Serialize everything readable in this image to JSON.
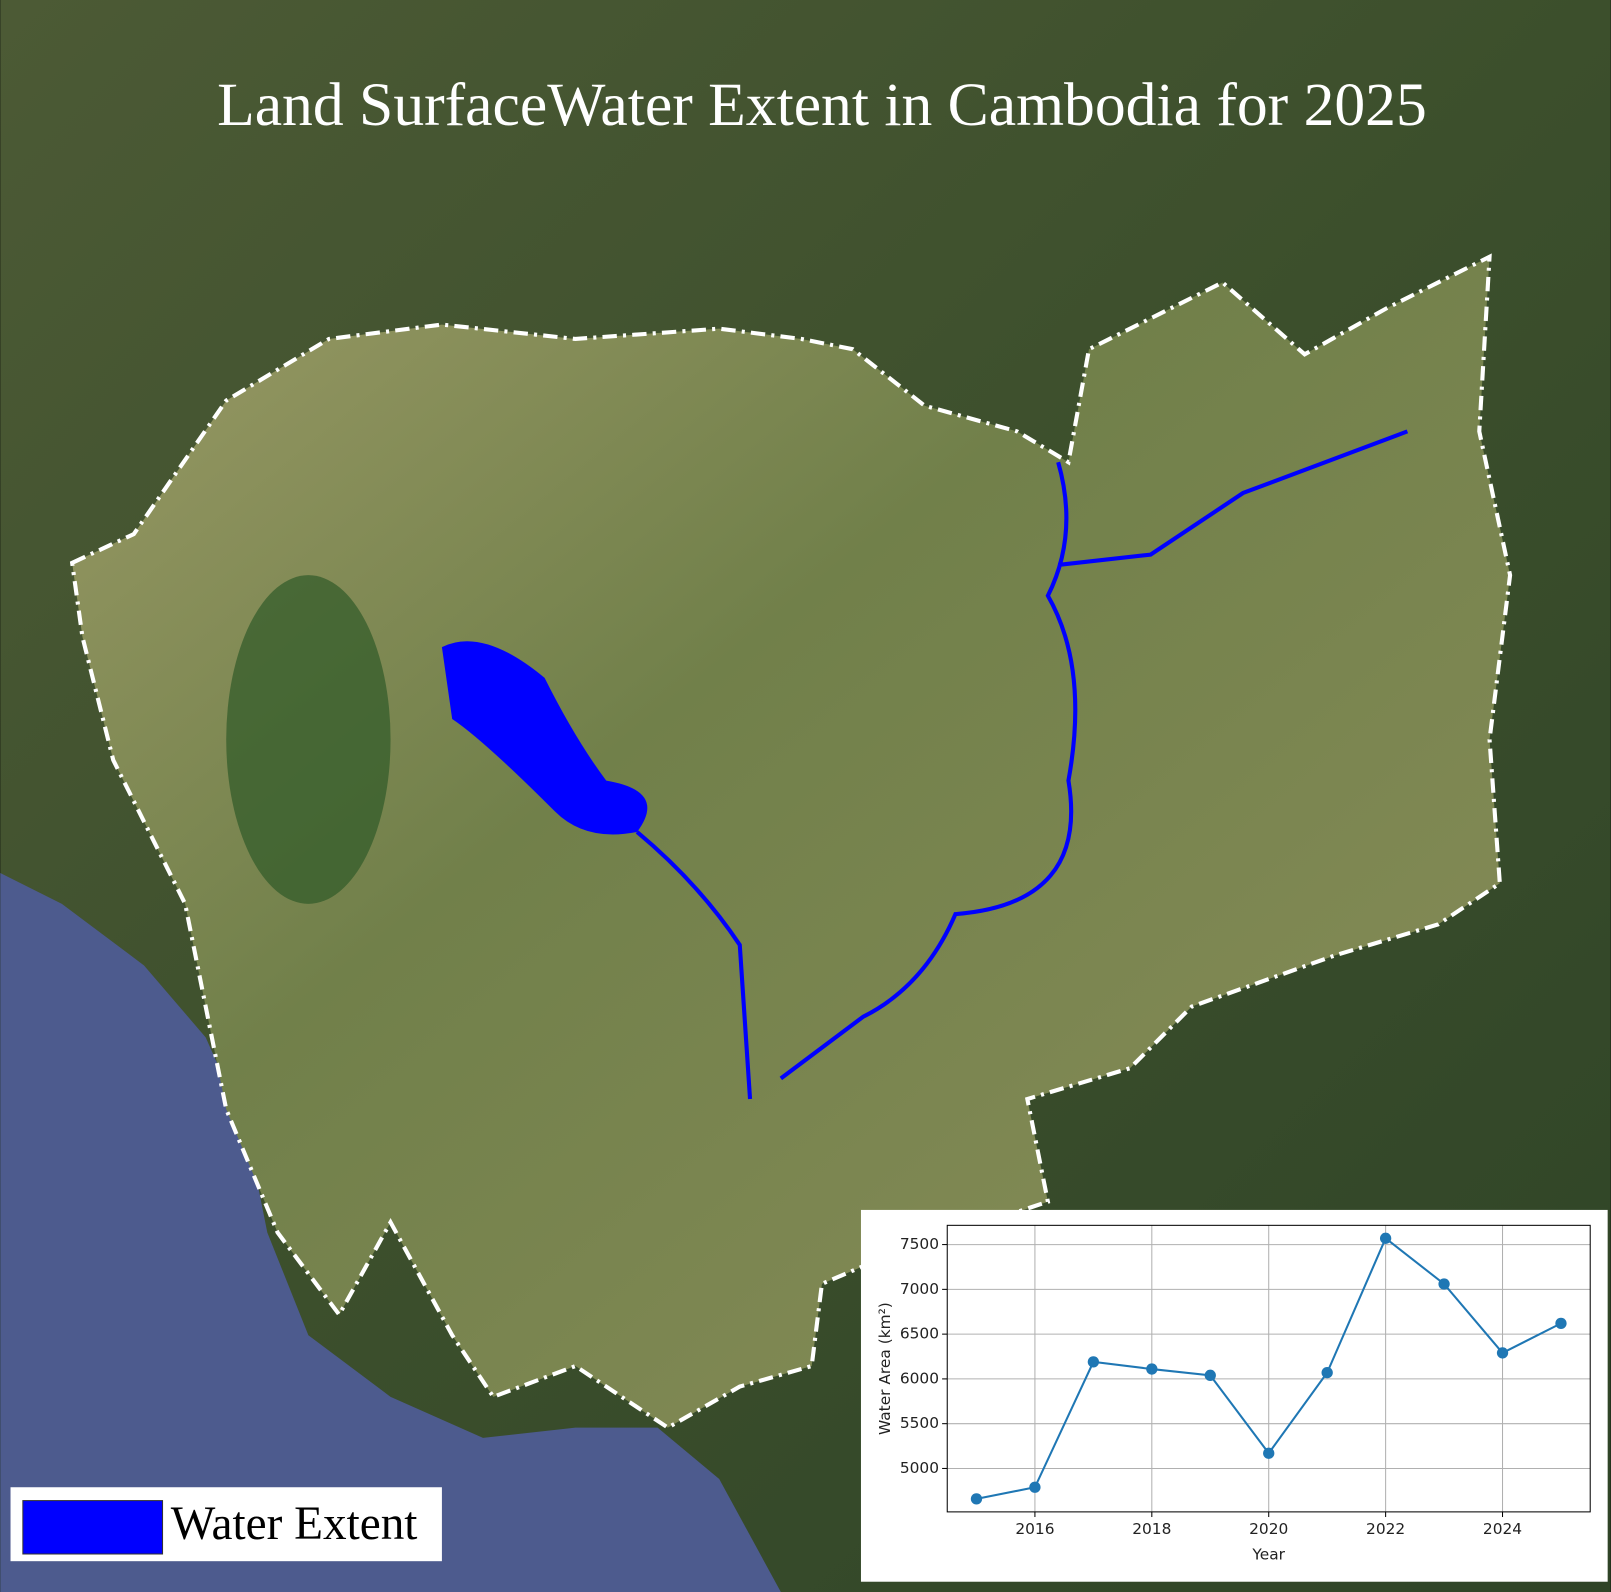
{
  "title": "Land SurfaceWater Extent in Cambodia for 2025",
  "legend": {
    "label": "Water Extent",
    "color": "#0000ff"
  },
  "chart_data": {
    "type": "line",
    "x": [
      2015,
      2016,
      2017,
      2018,
      2019,
      2020,
      2021,
      2022,
      2023,
      2024,
      2025
    ],
    "values": [
      4660,
      4790,
      6190,
      6110,
      6040,
      5170,
      6070,
      7570,
      7060,
      6290,
      6620
    ],
    "color": "#1f77b4",
    "xlabel": "Year",
    "ylabel": "Water Area (km²)",
    "xlim": [
      2014.5,
      2025.5
    ],
    "xticks": [
      2016,
      2018,
      2020,
      2022,
      2024
    ],
    "ylim": [
      4515,
      7715
    ],
    "yticks": [
      5000,
      5500,
      6000,
      6500,
      7000,
      7500
    ],
    "grid": true
  }
}
